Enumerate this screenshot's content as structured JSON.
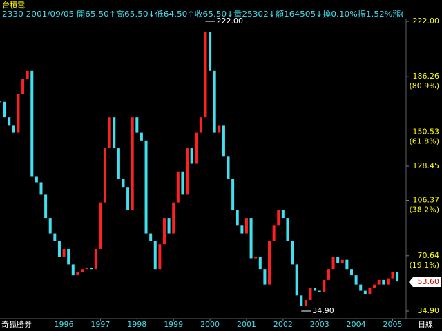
{
  "chart_data": {
    "type": "candlestick",
    "title": "台積電",
    "info": "2330 2001/09/05 開65.50↑高65.50↓低64.50↑收65.50↓量25302↓額164505↓換0.10%振1.52%漲(",
    "broker": "奇狐勝券",
    "period": "日線",
    "up_color": "#ff2020",
    "down_color": "#40e0f0",
    "x": [
      1994.25,
      1994.375,
      1994.5,
      1994.625,
      1994.75,
      1994.875,
      1995,
      1995.125,
      1995.25,
      1995.375,
      1995.5,
      1995.625,
      1995.75,
      1995.875,
      1996,
      1996.125,
      1996.25,
      1996.375,
      1996.5,
      1996.625,
      1996.75,
      1996.875,
      1997,
      1997.125,
      1997.25,
      1997.375,
      1997.5,
      1997.625,
      1997.75,
      1997.875,
      1998,
      1998.125,
      1998.25,
      1998.375,
      1998.5,
      1998.625,
      1998.75,
      1998.875,
      1999,
      1999.125,
      1999.25,
      1999.375,
      1999.5,
      1999.625,
      1999.75,
      1999.875,
      2000,
      2000.125,
      2000.25,
      2000.375,
      2000.5,
      2000.625,
      2000.75,
      2000.875,
      2001,
      2001.125,
      2001.25,
      2001.375,
      2001.5,
      2001.625,
      2001.75,
      2001.875,
      2002,
      2002.125,
      2002.25,
      2002.375,
      2002.5,
      2002.625,
      2002.75,
      2002.875,
      2003,
      2003.125,
      2003.25,
      2003.375,
      2003.5,
      2003.625,
      2003.75,
      2003.875,
      2004,
      2004.125,
      2004.25,
      2004.375,
      2004.5,
      2004.625,
      2004.75,
      2004.875,
      2005,
      2005.125
    ],
    "close": [
      170,
      160,
      155,
      150,
      175,
      185,
      190,
      122,
      118,
      110,
      95,
      85,
      80,
      70,
      75,
      65,
      58,
      60,
      62,
      63,
      62,
      75,
      105,
      140,
      160,
      140,
      120,
      115,
      100,
      160,
      150,
      145,
      85,
      80,
      62,
      78,
      95,
      85,
      105,
      125,
      110,
      140,
      130,
      150,
      160,
      215,
      190,
      150,
      155,
      135,
      120,
      100,
      90,
      85,
      95,
      69,
      70,
      62,
      52,
      80,
      90,
      100,
      95,
      80,
      65,
      45,
      38,
      42,
      50,
      48,
      47,
      55,
      62,
      70,
      66,
      68,
      62,
      58,
      52,
      48,
      46,
      50,
      52,
      55,
      52,
      56,
      60,
      54
    ],
    "xlim": [
      1994.25,
      2005.35
    ],
    "ylim": [
      34.9,
      222
    ],
    "xticks": [
      1996,
      1997,
      1998,
      1999,
      2000,
      2001,
      2002,
      2003,
      2004,
      2005
    ],
    "yticks": [
      {
        "value": 222,
        "label": "222.00"
      },
      186.26,
      150.53,
      128.45,
      106.37,
      70.64,
      {
        "value": 34.9,
        "label": "34.90"
      }
    ],
    "retracement_labels": [
      {
        "value": 186.26,
        "label": "(80.9%)"
      },
      {
        "value": 150.53,
        "label": "(61.8%)"
      },
      {
        "value": 106.37,
        "label": "(38.2%)"
      },
      {
        "value": 70.64,
        "label": "(19.1%)"
      }
    ],
    "annotations": [
      {
        "x": 1999.875,
        "value": 222,
        "label": "222.00"
      },
      {
        "x": 2002.5,
        "value": 34.9,
        "label": "34.90"
      }
    ],
    "last_price": {
      "value": 53.6,
      "label": "53.60"
    }
  }
}
